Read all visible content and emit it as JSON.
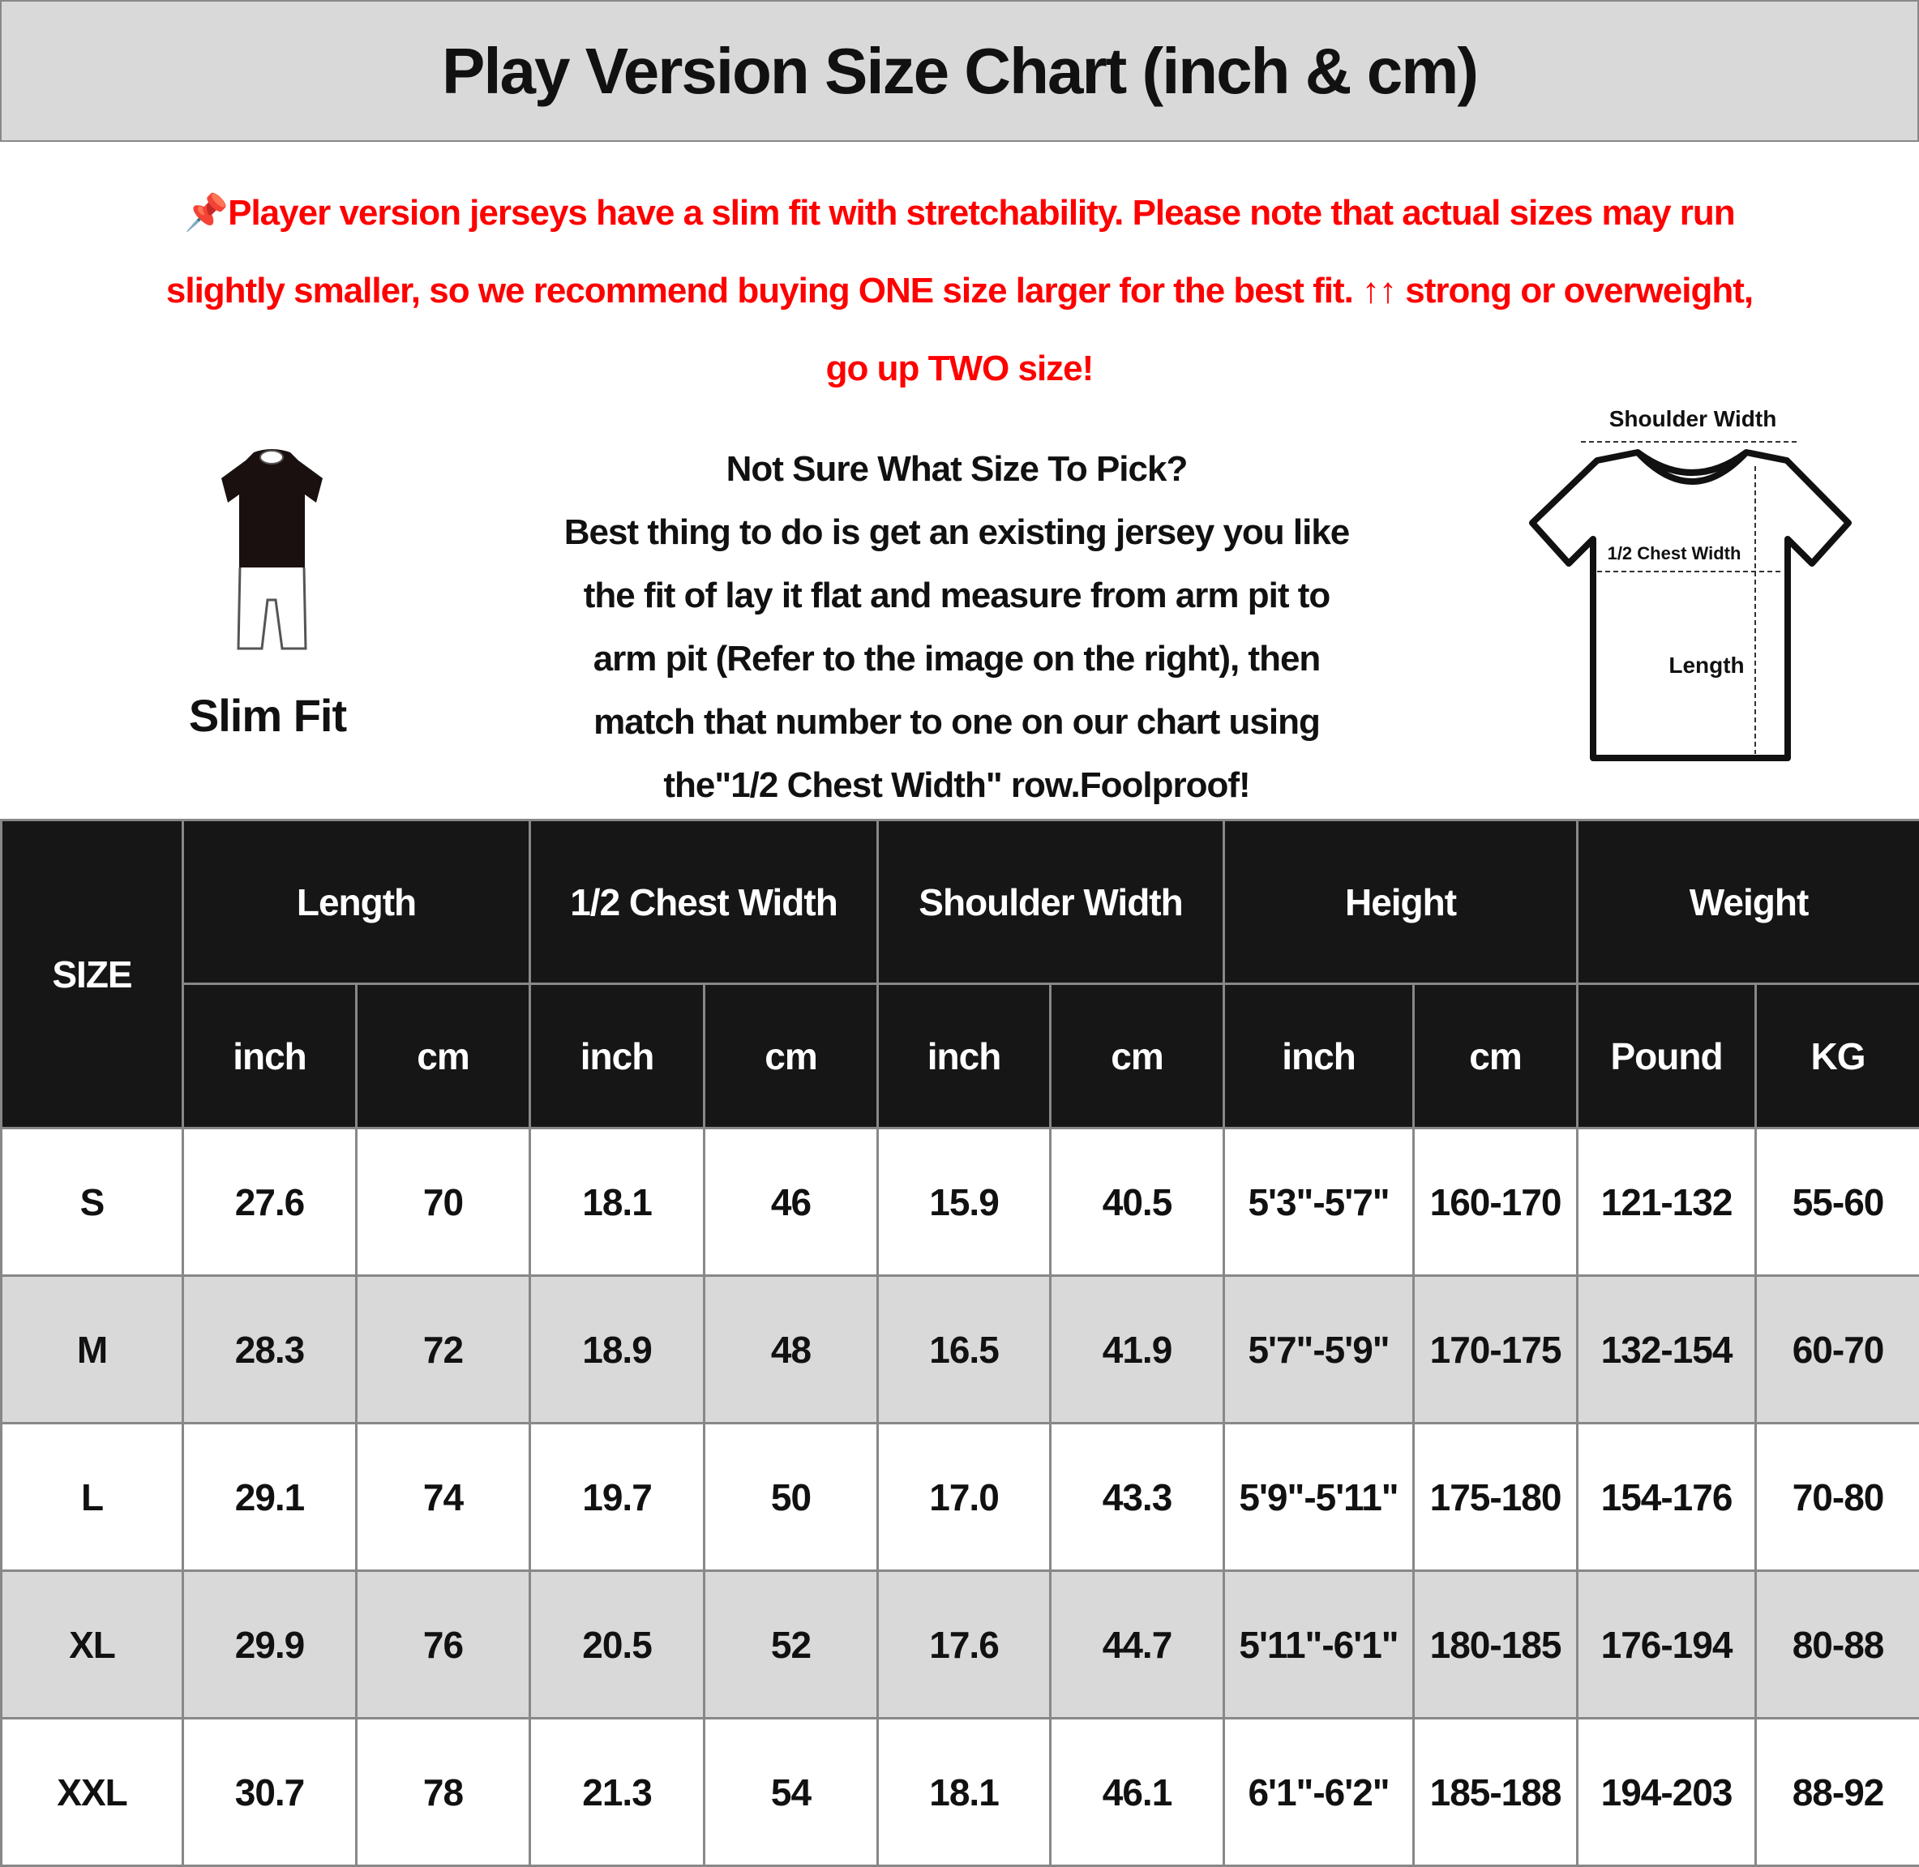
{
  "title": "Play Version Size Chart (inch & cm)",
  "notice": {
    "icon": "pushpin-icon",
    "color": "#ff0000",
    "lines": [
      "Player version jerseys have a slim fit with stretchability. Please note that actual sizes may run",
      "slightly smaller, so we recommend buying ONE size larger for the best fit. ↑↑ strong or overweight,",
      "go up TWO size!"
    ]
  },
  "fit": {
    "label": "Slim Fit",
    "icon": "slim-fit-figure-icon"
  },
  "guide": {
    "heading": "Not Sure What Size To Pick?",
    "lines": [
      "Best thing to do is get an existing jersey you like",
      "the fit of lay it flat and measure from arm pit to",
      "arm pit (Refer to the image on the right), then",
      "match that number to one on our chart using",
      "the\"1/2 Chest Width\" row.Foolproof!"
    ]
  },
  "diagram": {
    "icon": "tshirt-measurement-icon",
    "shoulder": "Shoulder Width",
    "chest": "1/2 Chest Width",
    "length": "Length"
  },
  "table": {
    "size_header": "SIZE",
    "groups": [
      "Length",
      "1/2 Chest Width",
      "Shoulder Width",
      "Height",
      "Weight"
    ],
    "units": [
      "inch",
      "cm",
      "inch",
      "cm",
      "inch",
      "cm",
      "inch",
      "cm",
      "Pound",
      "KG"
    ],
    "rows": [
      [
        "S",
        "27.6",
        "70",
        "18.1",
        "46",
        "15.9",
        "40.5",
        "5'3\"-5'7\"",
        "160-170",
        "121-132",
        "55-60"
      ],
      [
        "M",
        "28.3",
        "72",
        "18.9",
        "48",
        "16.5",
        "41.9",
        "5'7\"-5'9\"",
        "170-175",
        "132-154",
        "60-70"
      ],
      [
        "L",
        "29.1",
        "74",
        "19.7",
        "50",
        "17.0",
        "43.3",
        "5'9\"-5'11\"",
        "175-180",
        "154-176",
        "70-80"
      ],
      [
        "XL",
        "29.9",
        "76",
        "20.5",
        "52",
        "17.6",
        "44.7",
        "5'11\"-6'1\"",
        "180-185",
        "176-194",
        "80-88"
      ],
      [
        "XXL",
        "30.7",
        "78",
        "21.3",
        "54",
        "18.1",
        "46.1",
        "6'1\"-6'2\"",
        "185-188",
        "194-203",
        "88-92"
      ]
    ]
  }
}
